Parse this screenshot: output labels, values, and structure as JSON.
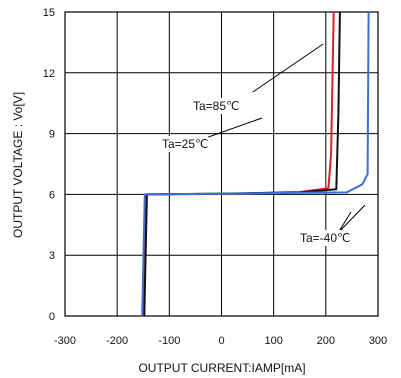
{
  "chart_data": {
    "type": "line",
    "xlabel": "OUTPUT CURRENT:IAMP[mA]",
    "ylabel": "OUTPUT VOLTAGE : Vo[V]",
    "xlim": [
      -300,
      300
    ],
    "ylim": [
      0,
      15
    ],
    "xticks": [
      "-300",
      "-200",
      "-100",
      "0",
      "100",
      "200",
      "300"
    ],
    "yticks": [
      "0",
      "3",
      "6",
      "9",
      "12",
      "15"
    ],
    "grid": true,
    "series": [
      {
        "name": "Ta=85℃",
        "color": "#d8202a",
        "points": [
          [
            -150,
            0
          ],
          [
            -145,
            6.0
          ],
          [
            0,
            6.02
          ],
          [
            150,
            6.12
          ],
          [
            205,
            6.3
          ],
          [
            210,
            8
          ],
          [
            215,
            15
          ]
        ]
      },
      {
        "name": "Ta=25℃",
        "color": "#111111",
        "points": [
          [
            -148,
            0
          ],
          [
            -143,
            6.0
          ],
          [
            0,
            6.04
          ],
          [
            150,
            6.1
          ],
          [
            220,
            6.25
          ],
          [
            224,
            10
          ],
          [
            227,
            15
          ]
        ]
      },
      {
        "name": "Ta=-40℃",
        "color": "#3a6fd8",
        "points": [
          [
            -152,
            0
          ],
          [
            -147,
            6.0
          ],
          [
            0,
            6.03
          ],
          [
            150,
            6.08
          ],
          [
            240,
            6.1
          ],
          [
            270,
            6.5
          ],
          [
            280,
            7
          ],
          [
            282,
            15
          ]
        ]
      }
    ],
    "annotations": [
      {
        "text": "Ta=85℃",
        "series": 0
      },
      {
        "text": "Ta=25℃",
        "series": 1
      },
      {
        "text": "Ta=-40℃",
        "series": 2
      }
    ]
  }
}
